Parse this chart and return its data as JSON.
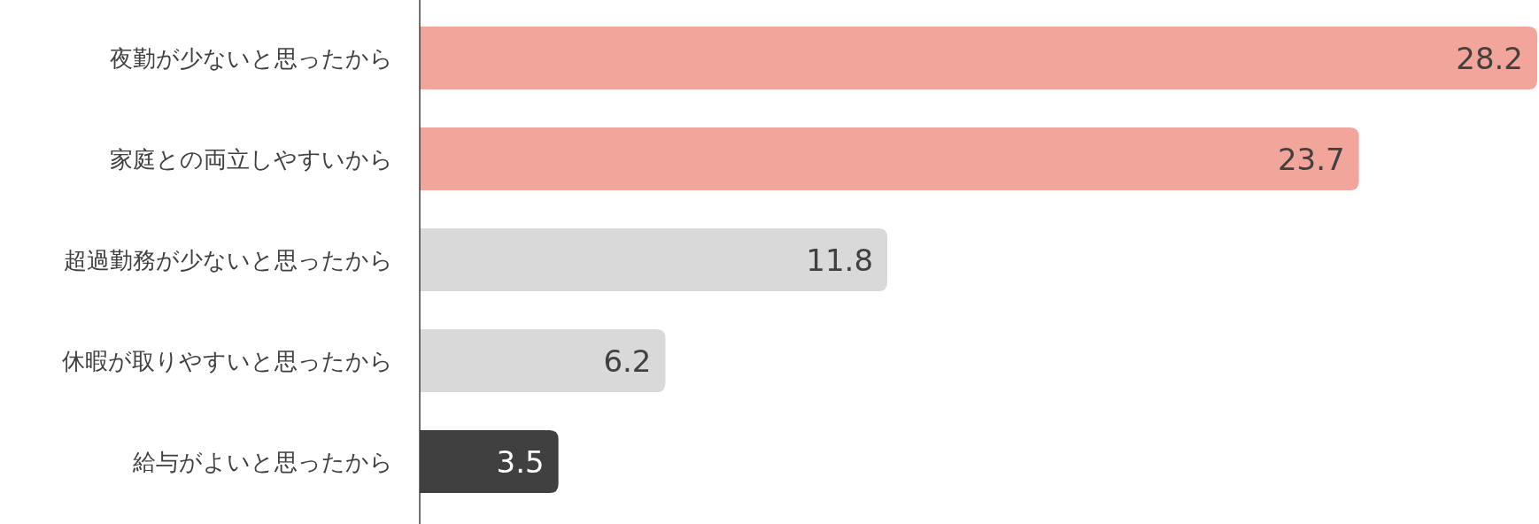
{
  "chart_data": {
    "type": "bar",
    "orientation": "horizontal",
    "data_labels": true,
    "categories": [
      "夜勤が少ないと思ったから",
      "家庭との両立しやすいから",
      "超過勤務が少ないと思ったから",
      "休暇が取りやすいと思ったから",
      "給与がよいと思ったから"
    ],
    "values": [
      28.2,
      23.7,
      11.8,
      6.2,
      3.5
    ],
    "colors": [
      "#f2a59b",
      "#f2a59b",
      "#d9d9d9",
      "#d9d9d9",
      "#404040"
    ]
  }
}
